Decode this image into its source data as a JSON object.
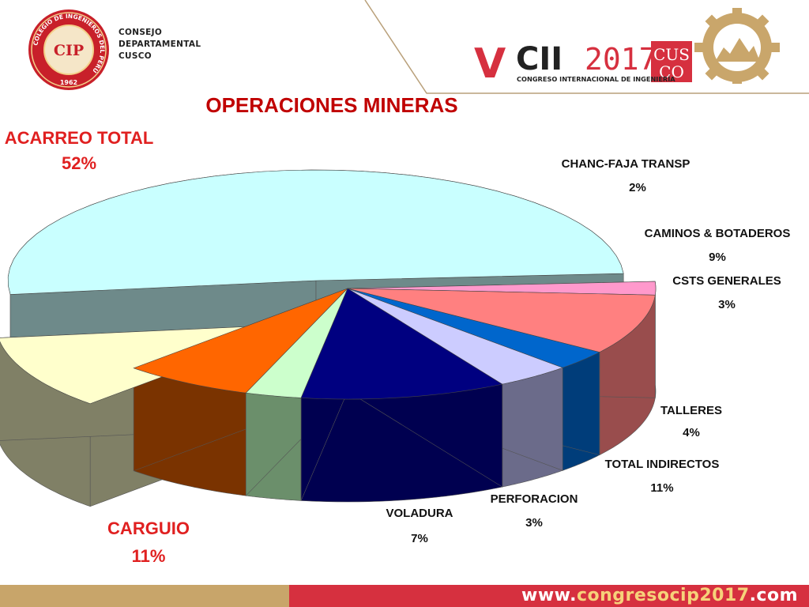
{
  "header": {
    "org_line1": "CONSEJO",
    "org_line2": "DEPARTAMENTAL",
    "org_line3": "CUSCO",
    "seal_initials": "CIP",
    "seal_year": "1962",
    "seal_ring_text": "COLEGIO DE INGENIEROS DEL PERÚ",
    "congress_v": "V",
    "congress_cii": "CII",
    "congress_year": "2017",
    "congress_city_top": "CUS",
    "congress_city_bottom": "CO",
    "congress_subtitle": "CONGRESO INTERNACIONAL DE INGENIERÍA"
  },
  "slide": {
    "title": "OPERACIONES MINERAS"
  },
  "footer": {
    "url_prefix": "www.",
    "url_mid": "congresocip2017",
    "url_suffix": ".com"
  },
  "colors": {
    "title": "#c00000",
    "label_red": "#e02020",
    "footer_gold": "#c8a56a",
    "footer_red": "#d6303f"
  },
  "chart_data": {
    "type": "pie",
    "style": "3d-exploded",
    "title": "",
    "slices": [
      {
        "label": "ACARREO TOTAL",
        "pct_label": "52%",
        "value": 52,
        "color": "#c9ffff",
        "side": "#6e8a8a",
        "label_color": "red"
      },
      {
        "label": "CHANC-FAJA TRANSP",
        "pct_label": "2%",
        "value": 2,
        "color": "#ff99cc",
        "side": "#995c7a",
        "label_color": "black"
      },
      {
        "label": "CAMINOS & BOTADEROS",
        "pct_label": "9%",
        "value": 9,
        "color": "#ff8080",
        "side": "#994d4d",
        "label_color": "black"
      },
      {
        "label": "CSTS GENERALES",
        "pct_label": "3%",
        "value": 3,
        "color": "#0066cc",
        "side": "#003d7a",
        "label_color": "black"
      },
      {
        "label": "TALLERES",
        "pct_label": "4%",
        "value": 4,
        "color": "#ccccff",
        "side": "#6b6b8a",
        "label_color": "black"
      },
      {
        "label": "TOTAL INDIRECTOS",
        "pct_label": "11%",
        "value": 11,
        "color": "#000080",
        "side": "#000050",
        "label_color": "black"
      },
      {
        "label": "PERFORACION",
        "pct_label": "3%",
        "value": 3,
        "color": "#ccffcc",
        "side": "#6b8f6b",
        "label_color": "black"
      },
      {
        "label": "VOLADURA",
        "pct_label": "7%",
        "value": 7,
        "color": "#ff6600",
        "side": "#7a3300",
        "label_color": "black"
      },
      {
        "label": "CARGUIO",
        "pct_label": "11%",
        "value": 11,
        "color": "#ffffcc",
        "side": "#808066",
        "label_color": "red"
      }
    ]
  }
}
